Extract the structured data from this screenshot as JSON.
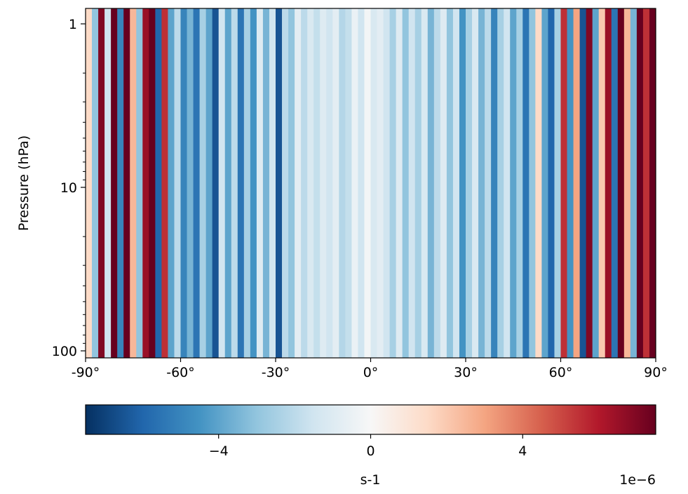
{
  "chart_data": {
    "type": "heatmap",
    "title": "",
    "xlabel": "",
    "ylabel": "Pressure (hPa)",
    "x_range": [
      -90,
      90
    ],
    "y_range": [
      1,
      100
    ],
    "y_scale": "log",
    "y_inverted": true,
    "x_ticks": [
      {
        "value": -90,
        "label": "-90°"
      },
      {
        "value": -60,
        "label": "-60°"
      },
      {
        "value": -30,
        "label": "-30°"
      },
      {
        "value": 0,
        "label": "0°"
      },
      {
        "value": 30,
        "label": "30°"
      },
      {
        "value": 60,
        "label": "60°"
      },
      {
        "value": 90,
        "label": "90°"
      }
    ],
    "y_ticks": [
      {
        "value": 1,
        "label": "1"
      },
      {
        "value": 10,
        "label": "10"
      },
      {
        "value": 100,
        "label": "100"
      }
    ],
    "colormap": "RdBu_r",
    "colorbar": {
      "range": [
        -7.5e-06,
        7.5e-06
      ],
      "ticks": [
        {
          "value": -4e-06,
          "label": "−4"
        },
        {
          "value": 0,
          "label": "0"
        },
        {
          "value": 4e-06,
          "label": "4"
        }
      ],
      "label": "s-1",
      "offset_text": "1e−6",
      "colors": [
        "#053061",
        "#2166ac",
        "#4393c3",
        "#92c5de",
        "#d1e5f0",
        "#f7f7f7",
        "#fddbc7",
        "#f4a582",
        "#d6604d",
        "#b2182b",
        "#67001f"
      ]
    },
    "columns": [
      {
        "lat": -89,
        "value": 1.5e-06
      },
      {
        "lat": -87,
        "value": -3e-06
      },
      {
        "lat": -85,
        "value": 7e-06
      },
      {
        "lat": -83,
        "value": -1.5e-06
      },
      {
        "lat": -81,
        "value": 7.5e-06
      },
      {
        "lat": -79,
        "value": -5e-06
      },
      {
        "lat": -77,
        "value": 7.5e-06
      },
      {
        "lat": -75,
        "value": 2.5e-06
      },
      {
        "lat": -73,
        "value": -3e-06
      },
      {
        "lat": -71,
        "value": 6.5e-06
      },
      {
        "lat": -69,
        "value": 7.5e-06
      },
      {
        "lat": -67,
        "value": -6e-06
      },
      {
        "lat": -65,
        "value": 5.5e-06
      },
      {
        "lat": -63,
        "value": -4e-06
      },
      {
        "lat": -61,
        "value": -2e-06
      },
      {
        "lat": -59,
        "value": -5e-06
      },
      {
        "lat": -57,
        "value": -3.5e-06
      },
      {
        "lat": -55,
        "value": -5.5e-06
      },
      {
        "lat": -53,
        "value": -2.5e-06
      },
      {
        "lat": -51,
        "value": -4e-06
      },
      {
        "lat": -49,
        "value": -6.5e-06
      },
      {
        "lat": -47,
        "value": -1.5e-06
      },
      {
        "lat": -45,
        "value": -4e-06
      },
      {
        "lat": -43,
        "value": -2e-06
      },
      {
        "lat": -41,
        "value": -5.5e-06
      },
      {
        "lat": -39,
        "value": -2.5e-06
      },
      {
        "lat": -37,
        "value": -4.5e-06
      },
      {
        "lat": -35,
        "value": -1e-06
      },
      {
        "lat": -33,
        "value": -3.5e-06
      },
      {
        "lat": -31,
        "value": -1.5e-06
      },
      {
        "lat": -29,
        "value": -6.5e-06
      },
      {
        "lat": -27,
        "value": -2e-06
      },
      {
        "lat": -25,
        "value": -3e-06
      },
      {
        "lat": -23,
        "value": -8e-07
      },
      {
        "lat": -21,
        "value": -2e-06
      },
      {
        "lat": -19,
        "value": -1.2e-06
      },
      {
        "lat": -17,
        "value": -1.8e-06
      },
      {
        "lat": -15,
        "value": -1e-06
      },
      {
        "lat": -13,
        "value": -1.5e-06
      },
      {
        "lat": -11,
        "value": -8e-07
      },
      {
        "lat": -9,
        "value": -2.2e-06
      },
      {
        "lat": -7,
        "value": -1.8e-06
      },
      {
        "lat": -5,
        "value": -5e-07
      },
      {
        "lat": -3,
        "value": -1.5e-06
      },
      {
        "lat": -1,
        "value": -2e-07
      },
      {
        "lat": 1,
        "value": -1.2e-06
      },
      {
        "lat": 3,
        "value": -8e-07
      },
      {
        "lat": 5,
        "value": -1.5e-06
      },
      {
        "lat": 7,
        "value": -2.5e-06
      },
      {
        "lat": 9,
        "value": -1e-06
      },
      {
        "lat": 11,
        "value": -3e-06
      },
      {
        "lat": 13,
        "value": -1.5e-06
      },
      {
        "lat": 15,
        "value": -2.5e-06
      },
      {
        "lat": 17,
        "value": -1.2e-06
      },
      {
        "lat": 19,
        "value": -3.5e-06
      },
      {
        "lat": 21,
        "value": -2e-06
      },
      {
        "lat": 23,
        "value": -1e-06
      },
      {
        "lat": 25,
        "value": -3e-06
      },
      {
        "lat": 27,
        "value": -1.5e-06
      },
      {
        "lat": 29,
        "value": -4.5e-06
      },
      {
        "lat": 31,
        "value": -2.5e-06
      },
      {
        "lat": 33,
        "value": -1.2e-06
      },
      {
        "lat": 35,
        "value": -3.5e-06
      },
      {
        "lat": 37,
        "value": -2e-06
      },
      {
        "lat": 39,
        "value": -5e-06
      },
      {
        "lat": 41,
        "value": -2.5e-06
      },
      {
        "lat": 43,
        "value": -1.5e-06
      },
      {
        "lat": 45,
        "value": -4e-06
      },
      {
        "lat": 47,
        "value": -2.5e-06
      },
      {
        "lat": 49,
        "value": -5.5e-06
      },
      {
        "lat": 51,
        "value": -3e-06
      },
      {
        "lat": 53,
        "value": 1.5e-06
      },
      {
        "lat": 55,
        "value": -4e-06
      },
      {
        "lat": 57,
        "value": -6e-06
      },
      {
        "lat": 59,
        "value": -2.5e-06
      },
      {
        "lat": 61,
        "value": 5.5e-06
      },
      {
        "lat": 63,
        "value": -4.5e-06
      },
      {
        "lat": 65,
        "value": 3e-06
      },
      {
        "lat": 67,
        "value": -6.5e-06
      },
      {
        "lat": 69,
        "value": 7e-06
      },
      {
        "lat": 71,
        "value": -4e-06
      },
      {
        "lat": 73,
        "value": 2e-06
      },
      {
        "lat": 75,
        "value": 6.5e-06
      },
      {
        "lat": 77,
        "value": -5.5e-06
      },
      {
        "lat": 79,
        "value": 7.5e-06
      },
      {
        "lat": 81,
        "value": 2.5e-06
      },
      {
        "lat": 83,
        "value": -3.5e-06
      },
      {
        "lat": 85,
        "value": 7.5e-06
      },
      {
        "lat": 87,
        "value": 5.5e-06
      },
      {
        "lat": 89,
        "value": 7.5e-06
      }
    ]
  }
}
